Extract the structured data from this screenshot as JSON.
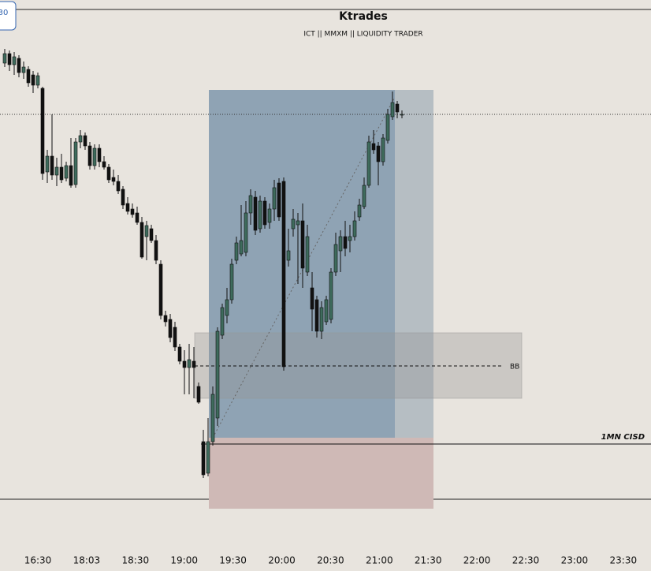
{
  "chart_data": {
    "type": "candlestick",
    "title": "Ktrades",
    "subtitle": "ICT || MMXM || LIQUIDITY TRADER",
    "badge": "30",
    "level_label": "BB",
    "cisd_label": "1MN CISD",
    "x_tick_labels": [
      "16:30",
      "18:03",
      "18:30",
      "19:00",
      "19:30",
      "20:00",
      "20:30",
      "21:00",
      "21:30",
      "22:00",
      "22:30",
      "23:00",
      "23:30"
    ],
    "ylim": [
      0,
      724
    ],
    "up_color": "#3e6b5c",
    "down_color": "#111111",
    "candles": [
      {
        "open": 644,
        "close": 656,
        "high": 662,
        "low": 639
      },
      {
        "open": 656,
        "close": 642,
        "high": 660,
        "low": 634
      },
      {
        "open": 642,
        "close": 652,
        "high": 658,
        "low": 629
      },
      {
        "open": 650,
        "close": 632,
        "high": 654,
        "low": 626
      },
      {
        "open": 632,
        "close": 639,
        "high": 646,
        "low": 624
      },
      {
        "open": 636,
        "close": 619,
        "high": 640,
        "low": 614
      },
      {
        "open": 629,
        "close": 616,
        "high": 634,
        "low": 606
      },
      {
        "open": 616,
        "close": 628,
        "high": 632,
        "low": 612
      },
      {
        "open": 612,
        "close": 504,
        "high": 614,
        "low": 496
      },
      {
        "open": 506,
        "close": 526,
        "high": 534,
        "low": 492
      },
      {
        "open": 526,
        "close": 502,
        "high": 579,
        "low": 496
      },
      {
        "open": 502,
        "close": 512,
        "high": 524,
        "low": 488
      },
      {
        "open": 512,
        "close": 496,
        "high": 529,
        "low": 492
      },
      {
        "open": 498,
        "close": 514,
        "high": 519,
        "low": 494
      },
      {
        "open": 514,
        "close": 489,
        "high": 549,
        "low": 486
      },
      {
        "open": 490,
        "close": 544,
        "high": 549,
        "low": 486
      },
      {
        "open": 544,
        "close": 552,
        "high": 559,
        "low": 536
      },
      {
        "open": 552,
        "close": 539,
        "high": 556,
        "low": 534
      },
      {
        "open": 539,
        "close": 514,
        "high": 544,
        "low": 509
      },
      {
        "open": 514,
        "close": 536,
        "high": 541,
        "low": 509
      },
      {
        "open": 536,
        "close": 519,
        "high": 541,
        "low": 512
      },
      {
        "open": 519,
        "close": 512,
        "high": 526,
        "low": 509
      },
      {
        "open": 512,
        "close": 496,
        "high": 516,
        "low": 492
      },
      {
        "open": 499,
        "close": 494,
        "high": 509,
        "low": 489
      },
      {
        "open": 494,
        "close": 482,
        "high": 502,
        "low": 478
      },
      {
        "open": 484,
        "close": 464,
        "high": 488,
        "low": 459
      },
      {
        "open": 466,
        "close": 456,
        "high": 474,
        "low": 452
      },
      {
        "open": 459,
        "close": 452,
        "high": 466,
        "low": 448
      },
      {
        "open": 454,
        "close": 442,
        "high": 462,
        "low": 439
      },
      {
        "open": 442,
        "close": 398,
        "high": 449,
        "low": 396
      },
      {
        "open": 424,
        "close": 438,
        "high": 444,
        "low": 394
      },
      {
        "open": 434,
        "close": 419,
        "high": 439,
        "low": 416
      },
      {
        "open": 419,
        "close": 394,
        "high": 426,
        "low": 389
      },
      {
        "open": 389,
        "close": 324,
        "high": 394,
        "low": 319
      },
      {
        "open": 324,
        "close": 316,
        "high": 330,
        "low": 310
      },
      {
        "open": 319,
        "close": 296,
        "high": 326,
        "low": 290
      },
      {
        "open": 309,
        "close": 284,
        "high": 316,
        "low": 279
      },
      {
        "open": 284,
        "close": 266,
        "high": 288,
        "low": 262
      },
      {
        "open": 266,
        "close": 258,
        "high": 280,
        "low": 224
      },
      {
        "open": 258,
        "close": 268,
        "high": 288,
        "low": 224
      },
      {
        "open": 266,
        "close": 258,
        "high": 284,
        "low": 219
      },
      {
        "open": 234,
        "close": 214,
        "high": 239,
        "low": 212
      },
      {
        "open": 164,
        "close": 122,
        "high": 179,
        "low": 118
      },
      {
        "open": 124,
        "close": 164,
        "high": 194,
        "low": 120
      },
      {
        "open": 164,
        "close": 224,
        "high": 234,
        "low": 159
      },
      {
        "open": 194,
        "close": 304,
        "high": 309,
        "low": 184
      },
      {
        "open": 299,
        "close": 334,
        "high": 339,
        "low": 294
      },
      {
        "open": 324,
        "close": 344,
        "high": 359,
        "low": 314
      },
      {
        "open": 344,
        "close": 389,
        "high": 396,
        "low": 339
      },
      {
        "open": 394,
        "close": 416,
        "high": 424,
        "low": 389
      },
      {
        "open": 402,
        "close": 419,
        "high": 464,
        "low": 399
      },
      {
        "open": 404,
        "close": 454,
        "high": 469,
        "low": 399
      },
      {
        "open": 454,
        "close": 476,
        "high": 484,
        "low": 439
      },
      {
        "open": 474,
        "close": 432,
        "high": 482,
        "low": 426
      },
      {
        "open": 434,
        "close": 469,
        "high": 476,
        "low": 429
      },
      {
        "open": 469,
        "close": 439,
        "high": 474,
        "low": 434
      },
      {
        "open": 442,
        "close": 459,
        "high": 466,
        "low": 434
      },
      {
        "open": 459,
        "close": 486,
        "high": 496,
        "low": 444
      },
      {
        "open": 492,
        "close": 449,
        "high": 498,
        "low": 444
      },
      {
        "open": 494,
        "close": 259,
        "high": 499,
        "low": 254
      },
      {
        "open": 394,
        "close": 406,
        "high": 434,
        "low": 386
      },
      {
        "open": 434,
        "close": 446,
        "high": 459,
        "low": 424
      },
      {
        "open": 439,
        "close": 444,
        "high": 454,
        "low": 364
      },
      {
        "open": 444,
        "close": 384,
        "high": 466,
        "low": 359
      },
      {
        "open": 379,
        "close": 424,
        "high": 439,
        "low": 374
      },
      {
        "open": 359,
        "close": 332,
        "high": 379,
        "low": 304
      },
      {
        "open": 344,
        "close": 304,
        "high": 349,
        "low": 296
      },
      {
        "open": 304,
        "close": 334,
        "high": 342,
        "low": 294
      },
      {
        "open": 316,
        "close": 344,
        "high": 349,
        "low": 312
      },
      {
        "open": 319,
        "close": 379,
        "high": 384,
        "low": 314
      },
      {
        "open": 379,
        "close": 414,
        "high": 429,
        "low": 374
      },
      {
        "open": 406,
        "close": 424,
        "high": 432,
        "low": 379
      },
      {
        "open": 424,
        "close": 409,
        "high": 444,
        "low": 399
      },
      {
        "open": 419,
        "close": 424,
        "high": 439,
        "low": 404
      },
      {
        "open": 424,
        "close": 444,
        "high": 456,
        "low": 419
      },
      {
        "open": 449,
        "close": 464,
        "high": 472,
        "low": 444
      },
      {
        "open": 462,
        "close": 489,
        "high": 499,
        "low": 459
      },
      {
        "open": 489,
        "close": 544,
        "high": 552,
        "low": 486
      },
      {
        "open": 542,
        "close": 534,
        "high": 559,
        "low": 529
      },
      {
        "open": 539,
        "close": 519,
        "high": 544,
        "low": 489
      },
      {
        "open": 519,
        "close": 549,
        "high": 554,
        "low": 514
      },
      {
        "open": 546,
        "close": 579,
        "high": 586,
        "low": 542
      },
      {
        "open": 576,
        "close": 594,
        "high": 608,
        "low": 572
      },
      {
        "open": 592,
        "close": 582,
        "high": 596,
        "low": 574
      },
      {
        "open": 579,
        "close": 579,
        "high": 584,
        "low": 574
      }
    ]
  }
}
